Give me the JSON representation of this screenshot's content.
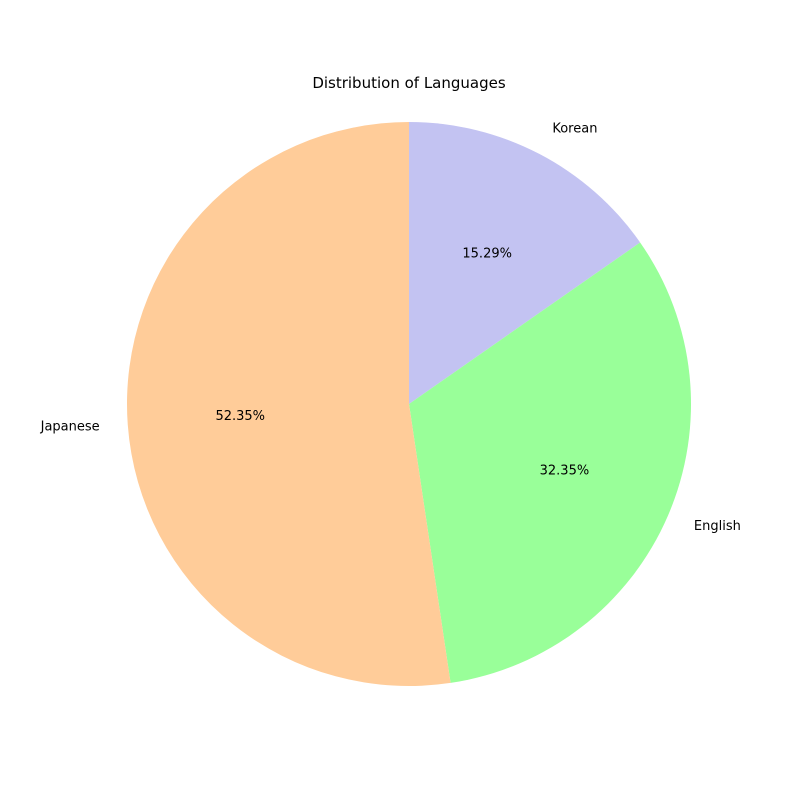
{
  "chart_data": {
    "type": "pie",
    "title": "Distribution of Languages",
    "categories": [
      "Korean",
      "English",
      "Japanese"
    ],
    "values": [
      15.29,
      32.35,
      52.35
    ],
    "percent_labels": [
      "15.29%",
      "32.35%",
      "52.35%"
    ],
    "colors": [
      "#c3c3f2",
      "#99ff99",
      "#ffcc99"
    ],
    "start_angle_deg": 90,
    "direction": "clockwise",
    "legend": "none"
  }
}
